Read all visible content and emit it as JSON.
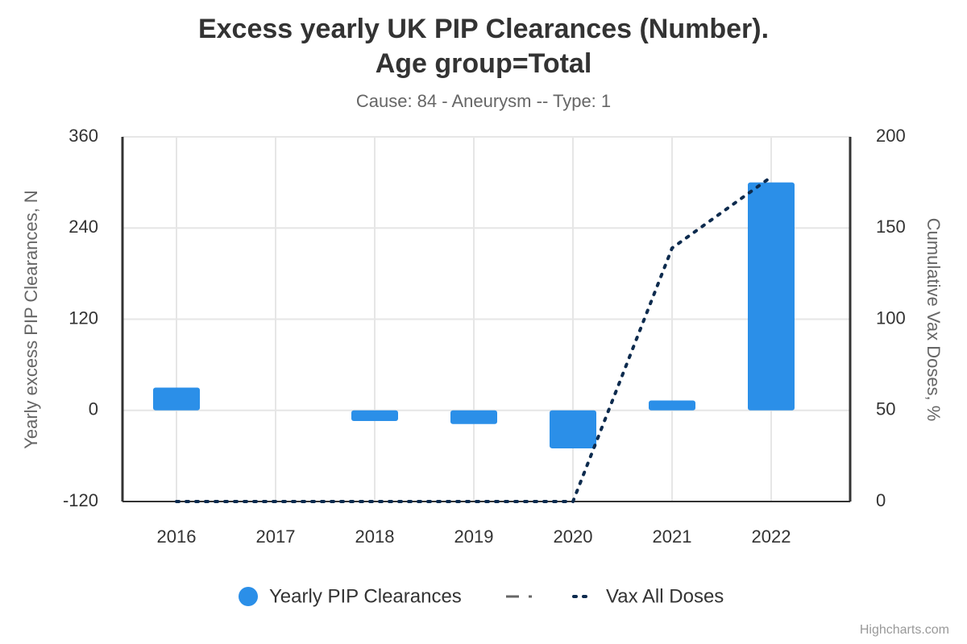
{
  "chart_data": {
    "type": "bar",
    "title": "Excess yearly UK PIP Clearances (Number). Age group=Total",
    "subtitle": "Cause: 84 - Aneurysm -- Type: 1",
    "y_label": "Yearly excess PIP Clearances, N",
    "y2_label": "Cumulative Vax Doses, %",
    "categories": [
      "2016",
      "2017",
      "2018",
      "2019",
      "2020",
      "2021",
      "2022"
    ],
    "series": [
      {
        "name": "Yearly PIP Clearances",
        "type": "bar",
        "color": "#2b8fe8",
        "values": [
          30,
          0,
          -14,
          -18,
          -50,
          13,
          300
        ]
      },
      {
        "name": "Vax All Doses",
        "type": "line",
        "axis": "y2",
        "color": "#0d2b4e",
        "values": [
          0,
          0,
          0,
          0,
          0,
          139,
          178
        ]
      }
    ],
    "ylim": [
      -120,
      360
    ],
    "yticks": [
      -120,
      0,
      120,
      240,
      360
    ],
    "y2lim": [
      0,
      200
    ],
    "y2ticks": [
      0,
      50,
      100,
      150,
      200
    ],
    "grid": true,
    "credit": "Highcharts.com"
  }
}
